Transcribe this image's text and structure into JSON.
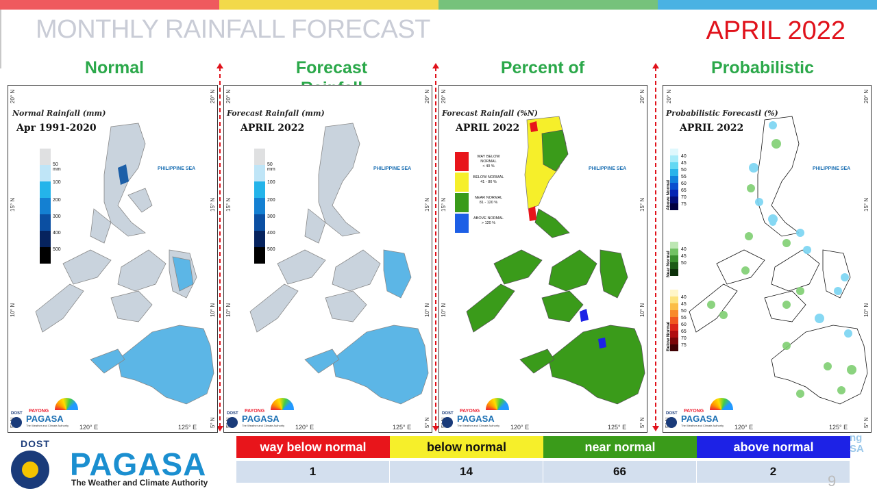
{
  "colors": {
    "stripe": [
      "#ef5a5e",
      "#f2d94a",
      "#76c27b",
      "#4ab2e3"
    ],
    "heading_green": "#2ba84a",
    "date_red": "#e0121b",
    "way_below": "#e8151b",
    "below": "#f6ef2a",
    "near": "#3a9b1a",
    "above": "#1d22e6"
  },
  "header": {
    "title": "MONTHLY RAINFALL FORECAST",
    "date": "APRIL 2022"
  },
  "columns": [
    {
      "heading": "Normal",
      "map_title": "Normal Rainfall (mm)",
      "map_subtitle": "Apr 1991-2020",
      "sea_label": "PHILIPPINE SEA",
      "legend": [
        "50 mm",
        "100",
        "200",
        "300",
        "400",
        "500"
      ]
    },
    {
      "heading": "Forecast Rainfall",
      "map_title": "Forecast Rainfall (mm)",
      "map_subtitle": "APRIL 2022",
      "sea_label": "PHILIPPINE SEA",
      "legend": [
        "50 mm",
        "100",
        "200",
        "300",
        "400",
        "500"
      ]
    },
    {
      "heading": "Percent of",
      "map_title": "Forecast Rainfall (%N)",
      "map_subtitle": "APRIL 2022",
      "sea_label": "PHILIPPINE SEA",
      "legend": [
        {
          "label": "WAY BELOW NORMAL",
          "range": "< 40 %"
        },
        {
          "label": "BELOW NORMAL",
          "range": "41 - 80 %"
        },
        {
          "label": "NEAR NORMAL",
          "range": "81 - 120 %"
        },
        {
          "label": "ABOVE NORMAL",
          "range": "> 120 %"
        }
      ]
    },
    {
      "heading": "Probabilistic",
      "map_title": "Probabilistic Forecastl (%)",
      "map_subtitle": "APRIL 2022",
      "sea_label": "PHILIPPINE SEA",
      "above_label": "Above Normal",
      "near_label": "Near Normal",
      "below_label": "Below Normal",
      "above_values": [
        "40",
        "45",
        "50",
        "55",
        "60",
        "65",
        "70",
        "75"
      ],
      "near_values": [
        "40",
        "45",
        "50"
      ],
      "below_values": [
        "40",
        "45",
        "50",
        "55",
        "60",
        "65",
        "70",
        "75"
      ]
    }
  ],
  "axes": {
    "lat_labels": [
      "20° N",
      "15° N",
      "10° N",
      "5° N"
    ],
    "lon_labels": [
      "120° E",
      "125° E"
    ]
  },
  "mini_logo": {
    "dost": "DOST",
    "payong": "PAYONG",
    "pagasa": "PAGASA",
    "tagline": "The Weather and Climate Authority"
  },
  "logo": {
    "dost": "DOST",
    "pagasa": "PAGASA",
    "tagline": "The Weather and Climate Authority"
  },
  "stats": {
    "headers": [
      "way below normal",
      "below normal",
      "near normal",
      "above normal"
    ],
    "values": [
      "1",
      "14",
      "66",
      "2"
    ]
  },
  "page_number": "9"
}
